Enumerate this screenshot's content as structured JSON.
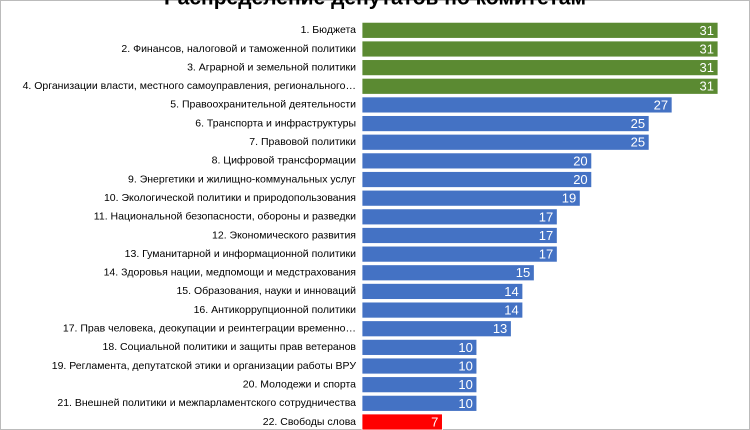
{
  "chart_data": {
    "type": "barh",
    "title": "Распределение депутатов по комитетам",
    "categories": [
      "1. Бюджета",
      "2. Финансов, налоговой и таможенной политики",
      "3. Аграрной и земельной политики",
      "4. Организации власти, местного самоуправления, регионального…",
      "5. Правоохранительной деятельности",
      "6. Транспорта и инфраструктуры",
      "7. Правовой политики",
      "8. Цифровой трансформации",
      "9. Энергетики и жилищно-коммунальных услуг",
      "10. Экологической политики и природопользования",
      "11. Национальной безопасности, обороны и разведки",
      "12. Экономического развития",
      "13. Гуманитарной и информационной политики",
      "14. Здоровья нации, медпомощи и медстрахования",
      "15. Образования, науки и инноваций",
      "16. Антикоррупционной политики",
      "17. Прав человека, деокупации и реинтеграции временно…",
      "18. Социальной политики и защиты прав ветеранов",
      "19. Регламента, депутатской этики и организации работы ВРУ",
      "20. Молодежи и спорта",
      "21. Внешней политики и межпарламентского сотрудничества",
      "22. Свободы слова"
    ],
    "values": [
      31,
      31,
      31,
      31,
      27,
      25,
      25,
      20,
      20,
      19,
      17,
      17,
      17,
      15,
      14,
      14,
      13,
      10,
      10,
      10,
      10,
      7
    ],
    "colors": [
      "#5b8a32",
      "#5b8a32",
      "#5b8a32",
      "#5b8a32",
      "#4472c4",
      "#4472c4",
      "#4472c4",
      "#4472c4",
      "#4472c4",
      "#4472c4",
      "#4472c4",
      "#4472c4",
      "#4472c4",
      "#4472c4",
      "#4472c4",
      "#4472c4",
      "#4472c4",
      "#4472c4",
      "#4472c4",
      "#4472c4",
      "#4472c4",
      "#ff0000"
    ],
    "xlim": [
      0,
      31
    ]
  }
}
